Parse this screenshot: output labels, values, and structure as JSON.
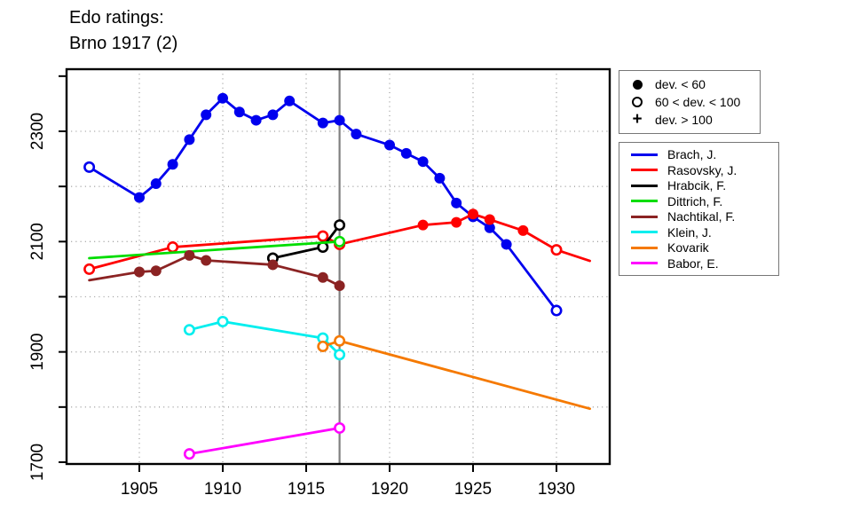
{
  "title": {
    "line1": "Edo ratings:",
    "line2": "Brno 1917 (2)"
  },
  "marker_legend": {
    "items": [
      {
        "marker": "filled-circle",
        "label": "dev. < 60"
      },
      {
        "marker": "open-circle",
        "label": "60 < dev. < 100"
      },
      {
        "marker": "plus",
        "label": "dev. > 100"
      }
    ]
  },
  "chart_data": {
    "type": "line",
    "title": "Edo ratings: Brno 1917 (2)",
    "xlabel": "",
    "ylabel": "",
    "x_ticks": [
      1905,
      1910,
      1915,
      1920,
      1925,
      1930
    ],
    "y_ticks": [
      1700,
      1800,
      1900,
      2000,
      2100,
      2200,
      2300,
      2400
    ],
    "y_major_tick_labels": [
      1700,
      1900,
      2100,
      2300
    ],
    "y_gridlines": [
      1800,
      1900,
      2000,
      2100,
      2200,
      2300
    ],
    "xlim": [
      1900.6,
      1933.2
    ],
    "ylim": [
      1690,
      2420
    ],
    "grid": true,
    "legend_position": "right-outside",
    "event_line_x": 1917,
    "event_line_color": "#808080",
    "series": [
      {
        "name": "Brach, J.",
        "color": "#0000EE",
        "points": [
          [
            1902,
            2235,
            "open"
          ],
          [
            1905,
            2180,
            "filled"
          ],
          [
            1906,
            2205,
            "filled"
          ],
          [
            1907,
            2240,
            "filled"
          ],
          [
            1908,
            2285,
            "filled"
          ],
          [
            1909,
            2330,
            "filled"
          ],
          [
            1910,
            2360,
            "filled"
          ],
          [
            1911,
            2335,
            "filled"
          ],
          [
            1912,
            2320,
            "filled"
          ],
          [
            1913,
            2330,
            "filled"
          ],
          [
            1914,
            2355,
            "filled"
          ],
          [
            1916,
            2315,
            "filled"
          ],
          [
            1917,
            2320,
            "filled"
          ],
          [
            1918,
            2295,
            "filled"
          ],
          [
            1920,
            2275,
            "filled"
          ],
          [
            1921,
            2260,
            "filled"
          ],
          [
            1922,
            2245,
            "filled"
          ],
          [
            1923,
            2215,
            "filled"
          ],
          [
            1924,
            2170,
            "filled"
          ],
          [
            1925,
            2145,
            "filled"
          ],
          [
            1926,
            2125,
            "filled"
          ],
          [
            1927,
            2095,
            "filled"
          ],
          [
            1930,
            1975,
            "open"
          ]
        ]
      },
      {
        "name": "Rasovsky, J.",
        "color": "#FF0000",
        "points": [
          [
            1902,
            2050,
            "open"
          ],
          [
            1907,
            2090,
            "open"
          ],
          [
            1916,
            2110,
            "open"
          ],
          [
            1917,
            2095,
            "open"
          ],
          [
            1922,
            2130,
            "filled"
          ],
          [
            1924,
            2135,
            "filled"
          ],
          [
            1925,
            2150,
            "filled"
          ],
          [
            1926,
            2140,
            "filled"
          ],
          [
            1928,
            2120,
            "filled"
          ],
          [
            1930,
            2085,
            "open"
          ],
          [
            1932,
            2065,
            "none"
          ]
        ]
      },
      {
        "name": "Hrabcik, F.",
        "color": "#000000",
        "points": [
          [
            1913,
            2070,
            "open"
          ],
          [
            1916,
            2090,
            "open"
          ],
          [
            1917,
            2130,
            "open"
          ]
        ]
      },
      {
        "name": "Dittrich, F.",
        "color": "#00DD00",
        "points": [
          [
            1902,
            2070,
            "none"
          ],
          [
            1917,
            2100,
            "open"
          ]
        ]
      },
      {
        "name": "Nachtikal, F.",
        "color": "#8B2323",
        "points": [
          [
            1902,
            2030,
            "none"
          ],
          [
            1905,
            2045,
            "filled"
          ],
          [
            1906,
            2047,
            "filled"
          ],
          [
            1908,
            2075,
            "filled"
          ],
          [
            1909,
            2066,
            "filled"
          ],
          [
            1913,
            2058,
            "filled"
          ],
          [
            1916,
            2035,
            "filled"
          ],
          [
            1917,
            2020,
            "filled"
          ]
        ]
      },
      {
        "name": "Klein, J.",
        "color": "#00EEEE",
        "points": [
          [
            1908,
            1940,
            "open"
          ],
          [
            1910,
            1955,
            "open"
          ],
          [
            1916,
            1925,
            "open"
          ],
          [
            1917,
            1895,
            "open"
          ]
        ]
      },
      {
        "name": "Kovarik",
        "color": "#F57900",
        "points": [
          [
            1916,
            1910,
            "open"
          ],
          [
            1917,
            1920,
            "open"
          ],
          [
            1932,
            1797,
            "none"
          ]
        ]
      },
      {
        "name": "Babor, E.",
        "color": "#FF00FF",
        "points": [
          [
            1908,
            1715,
            "open"
          ],
          [
            1917,
            1762,
            "open"
          ]
        ]
      }
    ]
  }
}
